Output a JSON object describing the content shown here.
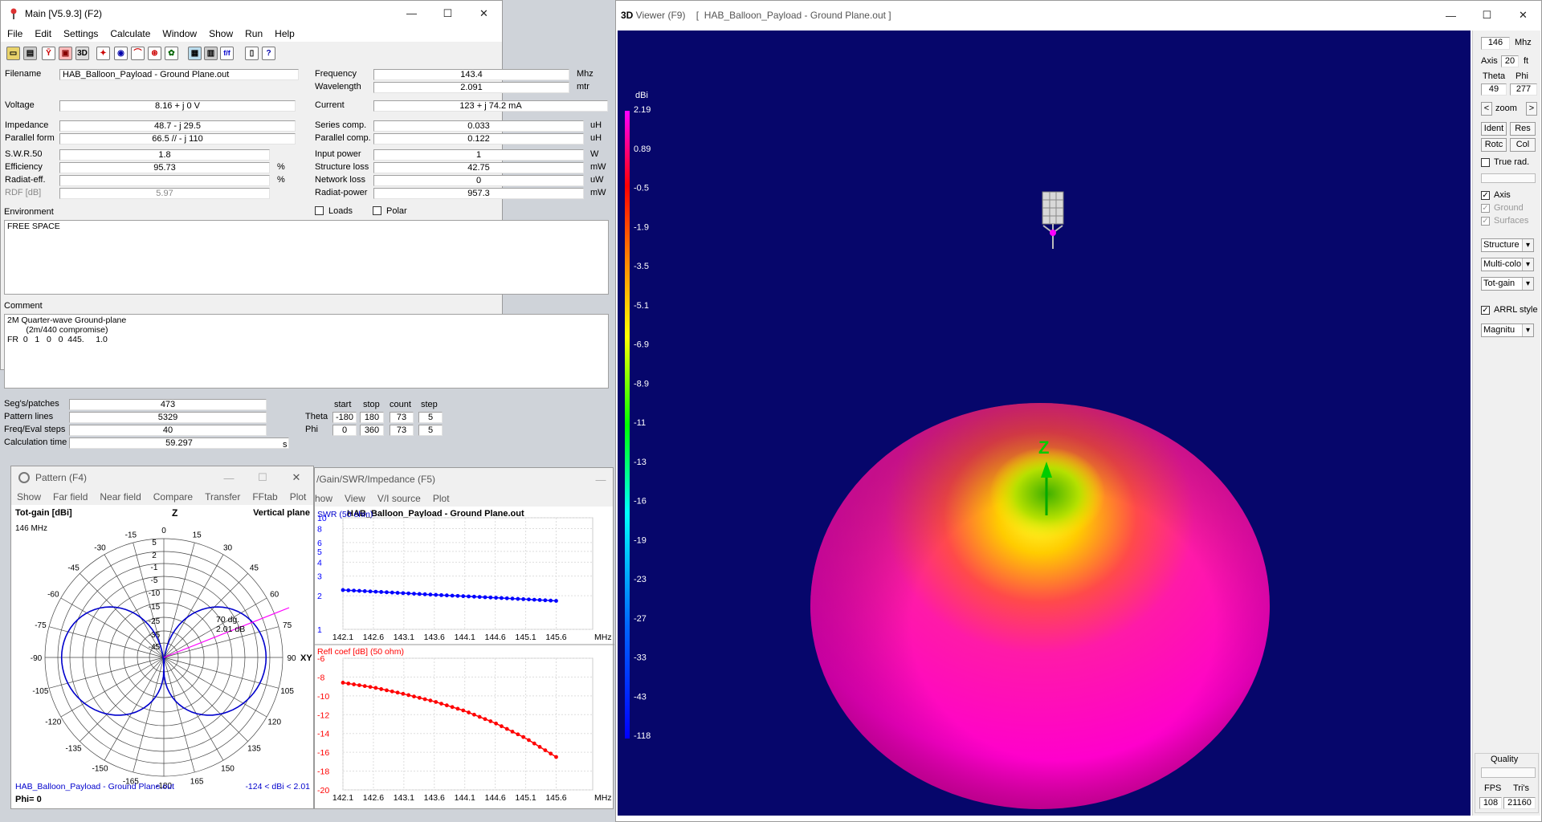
{
  "main": {
    "title": "Main [V5.9.3]  (F2)",
    "menu": [
      "File",
      "Edit",
      "Settings",
      "Calculate",
      "Window",
      "Show",
      "Run",
      "Help"
    ],
    "toolbar_icons": [
      "open-icon",
      "save-icon",
      "antenna-icon",
      "geometry-icon",
      "3d",
      "view-icon",
      "chart-icon",
      "pattern-icon",
      "compare-icon",
      "smith-icon",
      "calculator-icon",
      "export-icon",
      "tab-icon",
      "fft-icon",
      "copy-icon",
      "help-icon"
    ],
    "toolbar_3d": "3D",
    "toolbar_ff": "f/f",
    "left": [
      {
        "label": "Filename",
        "value": "HAB_Balloon_Payload - Ground Plane.out"
      },
      {
        "label": "Voltage",
        "value": "8.16 + j 0 V"
      },
      {
        "label": "Impedance",
        "value": "48.7 - j 29.5"
      },
      {
        "label": "Parallel form",
        "value": "66.5 // - j 110"
      },
      {
        "label": "S.W.R.50",
        "value": "1.8"
      },
      {
        "label": "Efficiency",
        "value": "95.73",
        "unit": "%"
      },
      {
        "label": "Radiat-eff.",
        "value": "",
        "unit": "%"
      },
      {
        "label": "RDF [dB]",
        "value": "5.97"
      }
    ],
    "right": [
      {
        "label": "Frequency",
        "value": "143.4",
        "unit": "Mhz"
      },
      {
        "label": "Wavelength",
        "value": "2.091",
        "unit": "mtr"
      },
      {
        "label": "Current",
        "value": "123 + j 74.2 mA"
      },
      {
        "label": "Series comp.",
        "value": "0.033",
        "unit": "uH"
      },
      {
        "label": "Parallel comp.",
        "value": "0.122",
        "unit": "uH"
      },
      {
        "label": "Input power",
        "value": "1",
        "unit": "W"
      },
      {
        "label": "Structure loss",
        "value": "42.75",
        "unit": "mW"
      },
      {
        "label": "Network loss",
        "value": "0",
        "unit": "uW"
      },
      {
        "label": "Radiat-power",
        "value": "957.3",
        "unit": "mW"
      }
    ],
    "loads_label": "Loads",
    "polar_label": "Polar",
    "environment_label": "Environment",
    "environment_text": "FREE SPACE",
    "comment_label": "Comment",
    "comment_text": "2M Quarter-wave Ground-plane\n        (2m/440 compromise)\nFR  0   1   0   0  445.     1.0",
    "stats": [
      {
        "label": "Seg's/patches",
        "value": "473"
      },
      {
        "label": "Pattern lines",
        "value": "5329"
      },
      {
        "label": "Freq/Eval steps",
        "value": "40"
      },
      {
        "label": "Calculation time",
        "value": "59.297",
        "unit": "s"
      }
    ],
    "grid_headers": [
      "start",
      "stop",
      "count",
      "step"
    ],
    "theta": {
      "label": "Theta",
      "values": [
        "-180",
        "180",
        "73",
        "5"
      ]
    },
    "phi": {
      "label": "Phi",
      "values": [
        "0",
        "360",
        "73",
        "5"
      ]
    }
  },
  "pattern": {
    "title": "Pattern   (F4)",
    "menu": [
      "Show",
      "Far field",
      "Near field",
      "Compare",
      "Transfer",
      "FFtab",
      "Plot"
    ],
    "gain_label": "Tot-gain [dBi]",
    "plane_label": "Vertical plane",
    "freq": "146 MHz",
    "z_label": "Z",
    "xy_label": "XY",
    "marker_angle": "70 dg.",
    "marker_gain": "2.01 dB",
    "angle_labels": [
      "0",
      "15",
      "30",
      "45",
      "60",
      "75",
      "90",
      "105",
      "120",
      "135",
      "150",
      "165",
      "-180",
      "-165",
      "-150",
      "-135",
      "-120",
      "-105",
      "-90",
      "-75",
      "-60",
      "-45",
      "-30",
      "-15"
    ],
    "ring_labels": [
      "5",
      "2",
      "-1",
      "-5",
      "-10",
      "-15",
      "-25",
      "-35",
      "-45"
    ],
    "footer_file": "HAB_Balloon_Payload - Ground Plane.out",
    "footer_range": "-124 < dBi < 2.01",
    "phi_label": "Phi= 0"
  },
  "swr": {
    "title": "/Gain/SWR/Impedance (F5)",
    "menu": [
      "how",
      "View",
      "V/I source",
      "Plot"
    ],
    "chart_title": "HAB_Balloon_Payload - Ground Plane.out",
    "top_label": "SWR (50 ohm)",
    "bottom_label": "Refl coef [dB] (50 ohm)",
    "x_unit": "MHz"
  },
  "chart_data": [
    {
      "type": "line",
      "title": "HAB_Balloon_Payload - Ground Plane.out",
      "ylabel": "SWR (50 ohm)",
      "xlabel": "MHz",
      "x": [
        142.1,
        142.6,
        143.1,
        143.6,
        144.1,
        144.6,
        145.1,
        145.6
      ],
      "xticks": [
        "142.1",
        "142.6",
        "143.1",
        "143.6",
        "144.1",
        "144.6",
        "145.1",
        "145.6"
      ],
      "yticks": [
        "10",
        "8",
        "6",
        "5",
        "4",
        "3",
        "2",
        "1"
      ],
      "yscale": "log",
      "ylim": [
        1,
        10
      ],
      "series": [
        {
          "values": [
            2.25,
            2.18,
            2.11,
            2.04,
            1.98,
            1.92,
            1.86,
            1.8
          ],
          "color": "#0000ff"
        }
      ]
    },
    {
      "type": "line",
      "ylabel": "Refl coef [dB] (50 ohm)",
      "xlabel": "MHz",
      "x": [
        142.1,
        142.6,
        143.1,
        143.6,
        144.1,
        144.6,
        145.1,
        145.6
      ],
      "xticks": [
        "142.1",
        "142.6",
        "143.1",
        "143.6",
        "144.1",
        "144.6",
        "145.1",
        "145.6"
      ],
      "yticks": [
        "-6",
        "-8",
        "-10",
        "-12",
        "-14",
        "-16",
        "-18",
        "-20"
      ],
      "ylim": [
        -20,
        -6
      ],
      "series": [
        {
          "values": [
            -8.6,
            -9.1,
            -9.8,
            -10.6,
            -11.6,
            -12.9,
            -14.5,
            -16.5
          ],
          "color": "#ff0000"
        }
      ]
    }
  ],
  "viewer": {
    "title_prefix": "3D",
    "title": " Viewer (F9)    [  HAB_Balloon_Payload - Ground Plane.out ]",
    "scale_unit": "dBi",
    "scale": [
      "2.19",
      "0.89",
      "-0.5",
      "-1.9",
      "-3.5",
      "-5.1",
      "-6.9",
      "-8.9",
      "-11",
      "-13",
      "-16",
      "-19",
      "-23",
      "-27",
      "-33",
      "-43",
      "-118"
    ],
    "z_label": "Z",
    "panel": {
      "freq": "146",
      "freq_unit": "Mhz",
      "axis_label": "Axis",
      "axis_value": "20",
      "axis_unit": "ft",
      "theta_label": "Theta",
      "phi_label": "Phi",
      "theta": "49",
      "phi": "277",
      "zoom": "zoom",
      "prev": "<",
      "next": ">",
      "btn_ident": "Ident",
      "btn_res": "Res",
      "btn_rotc": "Rotc",
      "btn_col": "Col",
      "true_rad": "True rad.",
      "cb_axis": "Axis",
      "cb_ground": "Ground",
      "cb_surfaces": "Surfaces",
      "sel1": "Structure",
      "sel2": "Multi-colo",
      "sel3": "Tot-gain",
      "arrl": "ARRL style",
      "sel4": "Magnitu",
      "quality": "Quality",
      "fps_label": "FPS",
      "tris_label": "Tri's",
      "fps": "108",
      "tris": "21160"
    }
  }
}
